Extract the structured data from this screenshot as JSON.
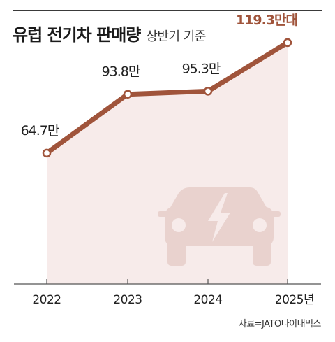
{
  "header": {
    "title": "유럽 전기차 판매량",
    "subtitle": "상반기 기준"
  },
  "chart_data": {
    "type": "area",
    "categories": [
      "2022",
      "2023",
      "2024",
      "2025년"
    ],
    "values": [
      64.7,
      93.8,
      95.3,
      119.3
    ],
    "data_labels": [
      "64.7만",
      "93.8만",
      "95.3만",
      "119.3만대"
    ],
    "ylim": [
      0,
      130
    ],
    "grid": false,
    "line_color": "#a0543b",
    "fill_color": "#f7ebea",
    "highlight_label_color": "#a0543b",
    "icon": "electric-car-icon"
  },
  "source": "자료=JATO다이내믹스"
}
